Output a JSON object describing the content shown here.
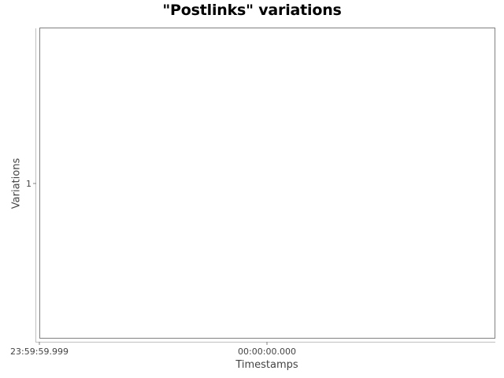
{
  "chart_data": {
    "type": "line",
    "title": "\"Postlinks\" variations",
    "xlabel": "Timestamps",
    "ylabel": "Variations",
    "x_ticks": [
      "23:59:59.999",
      "00:00:00.000"
    ],
    "y_ticks": [
      1
    ],
    "series": [],
    "grid": false,
    "colors": {
      "plot_border": "#808080",
      "axis_line": "#c0c0c0",
      "tick_text": "#444444",
      "title": "#000000"
    }
  }
}
